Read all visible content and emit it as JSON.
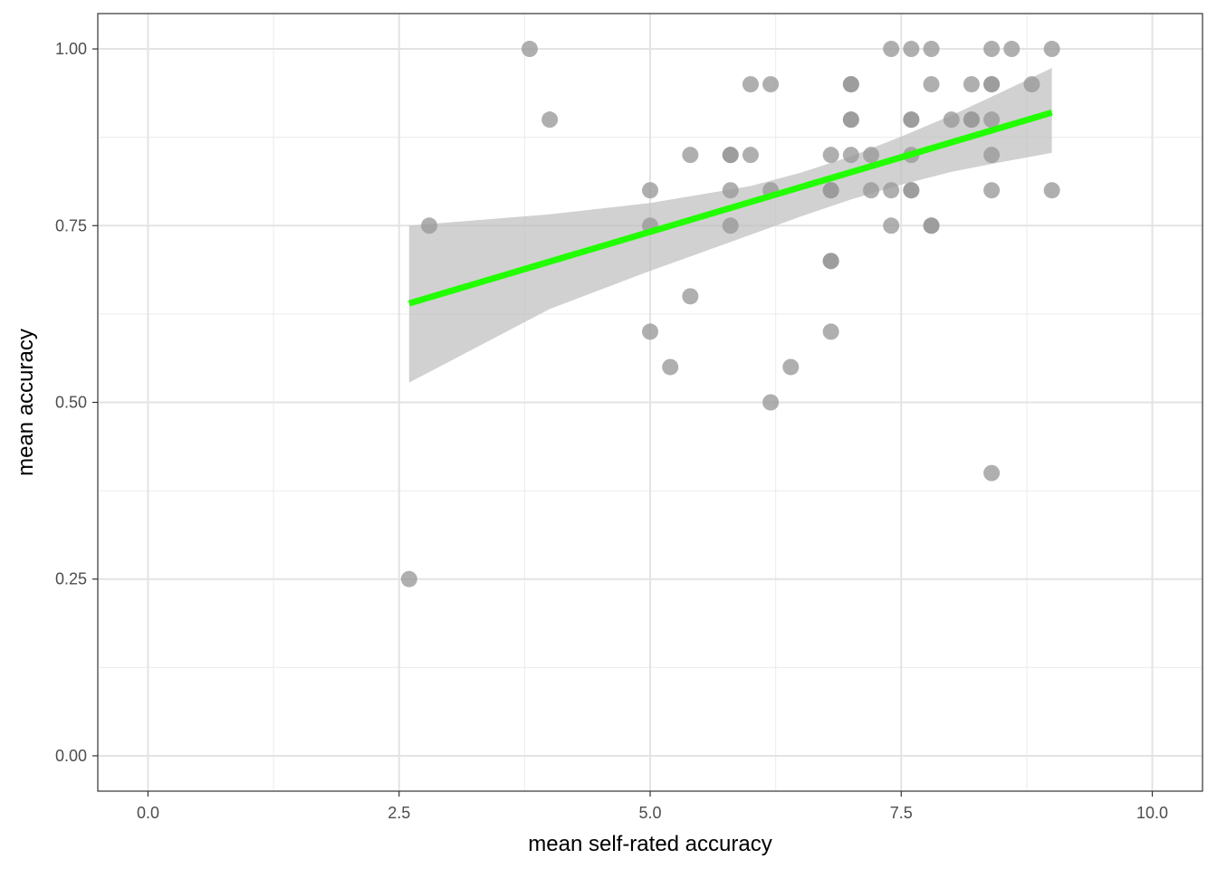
{
  "chart_data": {
    "type": "scatter",
    "title": "",
    "xlabel": "mean self-rated accuracy",
    "ylabel": "mean accuracy",
    "xlim": [
      -0.5,
      10.5
    ],
    "ylim": [
      -0.05,
      1.05
    ],
    "x_ticks": [
      0.0,
      2.5,
      5.0,
      7.5,
      10.0
    ],
    "x_tick_labels": [
      "0.0",
      "2.5",
      "5.0",
      "7.5",
      "10.0"
    ],
    "y_ticks": [
      0.0,
      0.25,
      0.5,
      0.75,
      1.0
    ],
    "y_tick_labels": [
      "0.00",
      "0.25",
      "0.50",
      "0.75",
      "1.00"
    ],
    "grid": true,
    "legend": "none",
    "colors": {
      "points": "#999999",
      "fit_line": "#22ff00",
      "ribbon": "#bebebe"
    },
    "points": [
      {
        "x": 2.6,
        "y": 0.25
      },
      {
        "x": 2.8,
        "y": 0.75
      },
      {
        "x": 3.8,
        "y": 1.0
      },
      {
        "x": 4.0,
        "y": 0.9
      },
      {
        "x": 5.0,
        "y": 0.8
      },
      {
        "x": 5.0,
        "y": 0.75
      },
      {
        "x": 5.0,
        "y": 0.6
      },
      {
        "x": 5.2,
        "y": 0.55
      },
      {
        "x": 5.4,
        "y": 0.85
      },
      {
        "x": 5.4,
        "y": 0.65
      },
      {
        "x": 5.8,
        "y": 0.85
      },
      {
        "x": 5.8,
        "y": 0.85
      },
      {
        "x": 5.8,
        "y": 0.8
      },
      {
        "x": 5.8,
        "y": 0.75
      },
      {
        "x": 6.0,
        "y": 0.95
      },
      {
        "x": 6.0,
        "y": 0.85
      },
      {
        "x": 6.2,
        "y": 0.95
      },
      {
        "x": 6.2,
        "y": 0.8
      },
      {
        "x": 6.2,
        "y": 0.5
      },
      {
        "x": 6.4,
        "y": 0.55
      },
      {
        "x": 6.8,
        "y": 0.85
      },
      {
        "x": 6.8,
        "y": 0.8
      },
      {
        "x": 6.8,
        "y": 0.8
      },
      {
        "x": 6.8,
        "y": 0.7
      },
      {
        "x": 6.8,
        "y": 0.7
      },
      {
        "x": 6.8,
        "y": 0.6
      },
      {
        "x": 7.0,
        "y": 0.95
      },
      {
        "x": 7.0,
        "y": 0.95
      },
      {
        "x": 7.0,
        "y": 0.9
      },
      {
        "x": 7.0,
        "y": 0.9
      },
      {
        "x": 7.0,
        "y": 0.85
      },
      {
        "x": 7.2,
        "y": 0.85
      },
      {
        "x": 7.2,
        "y": 0.8
      },
      {
        "x": 7.4,
        "y": 1.0
      },
      {
        "x": 7.4,
        "y": 0.8
      },
      {
        "x": 7.4,
        "y": 0.75
      },
      {
        "x": 7.6,
        "y": 1.0
      },
      {
        "x": 7.6,
        "y": 0.9
      },
      {
        "x": 7.6,
        "y": 0.9
      },
      {
        "x": 7.6,
        "y": 0.85
      },
      {
        "x": 7.6,
        "y": 0.8
      },
      {
        "x": 7.6,
        "y": 0.8
      },
      {
        "x": 7.8,
        "y": 1.0
      },
      {
        "x": 7.8,
        "y": 0.95
      },
      {
        "x": 7.8,
        "y": 0.75
      },
      {
        "x": 7.8,
        "y": 0.75
      },
      {
        "x": 8.0,
        "y": 0.9
      },
      {
        "x": 8.2,
        "y": 0.95
      },
      {
        "x": 8.2,
        "y": 0.9
      },
      {
        "x": 8.2,
        "y": 0.9
      },
      {
        "x": 8.4,
        "y": 1.0
      },
      {
        "x": 8.4,
        "y": 0.95
      },
      {
        "x": 8.4,
        "y": 0.95
      },
      {
        "x": 8.4,
        "y": 0.9
      },
      {
        "x": 8.4,
        "y": 0.85
      },
      {
        "x": 8.4,
        "y": 0.8
      },
      {
        "x": 8.4,
        "y": 0.4
      },
      {
        "x": 8.6,
        "y": 1.0
      },
      {
        "x": 8.8,
        "y": 0.95
      },
      {
        "x": 9.0,
        "y": 1.0
      },
      {
        "x": 9.0,
        "y": 0.8
      }
    ],
    "fit_line": {
      "x": [
        2.6,
        9.0
      ],
      "y": [
        0.64,
        0.91
      ]
    },
    "confidence_band": {
      "x": [
        2.6,
        4.0,
        5.0,
        6.0,
        6.5,
        7.0,
        7.5,
        8.0,
        8.5,
        9.0
      ],
      "lower": [
        0.528,
        0.632,
        0.686,
        0.737,
        0.763,
        0.787,
        0.808,
        0.826,
        0.84,
        0.853
      ],
      "upper": [
        0.75,
        0.766,
        0.782,
        0.806,
        0.825,
        0.848,
        0.876,
        0.906,
        0.939,
        0.973
      ]
    }
  }
}
